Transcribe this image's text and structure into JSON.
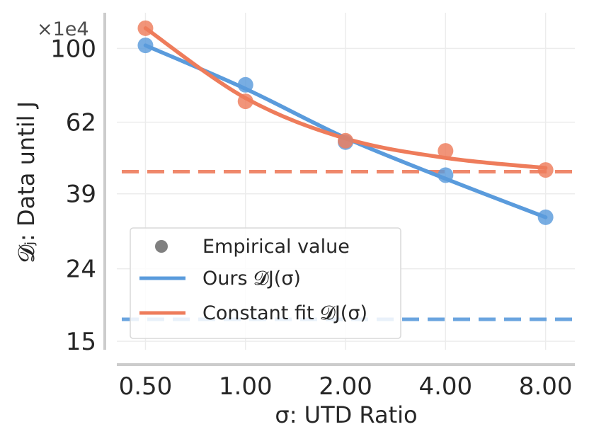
{
  "chart_data": {
    "type": "line",
    "xlabel": "σ: UTD Ratio",
    "ylabel": "𝓓ⱼ: Data until J",
    "y_multiplier": "×1e4",
    "x_scale": "log2",
    "y_scale": "log",
    "xlim": [
      0.41,
      9.8
    ],
    "ylim": [
      14.2,
      126
    ],
    "x_ticks": [
      0.5,
      1,
      2,
      4,
      8
    ],
    "x_tick_labels": [
      "0.50",
      "1.00",
      "2.00",
      "4.00",
      "8.00"
    ],
    "y_ticks": [
      15,
      24,
      39,
      62,
      100
    ],
    "y_tick_labels": [
      "15",
      "24",
      "39",
      "62",
      "100"
    ],
    "grid": true,
    "legend_position": "lower-left",
    "legend": {
      "empirical_label": "Empirical value",
      "ours_label": "Ours 𝓓J(σ)",
      "constant_label": "Constant fit 𝓓J(σ)"
    },
    "series": [
      {
        "key": "ours",
        "color": "#5a9bdc",
        "empirical_x": [
          0.5,
          1,
          2,
          4,
          8
        ],
        "empirical_y": [
          102,
          79,
          54.5,
          44,
          33.5
        ],
        "fit_x": [
          0.5,
          1,
          2,
          4,
          8
        ],
        "fit_y": [
          102,
          77,
          56,
          43,
          33.5
        ],
        "asymptote": 17.3
      },
      {
        "key": "constant",
        "color": "#ee7c5b",
        "empirical_x": [
          0.5,
          1,
          2,
          4,
          8
        ],
        "empirical_y": [
          114,
          71,
          55,
          51.5,
          45.5
        ],
        "fit_x": [
          0.5,
          1,
          2,
          4,
          8
        ],
        "fit_y": [
          114,
          72.5,
          55.8,
          49.2,
          46.1
        ],
        "asymptote": 45
      }
    ]
  }
}
